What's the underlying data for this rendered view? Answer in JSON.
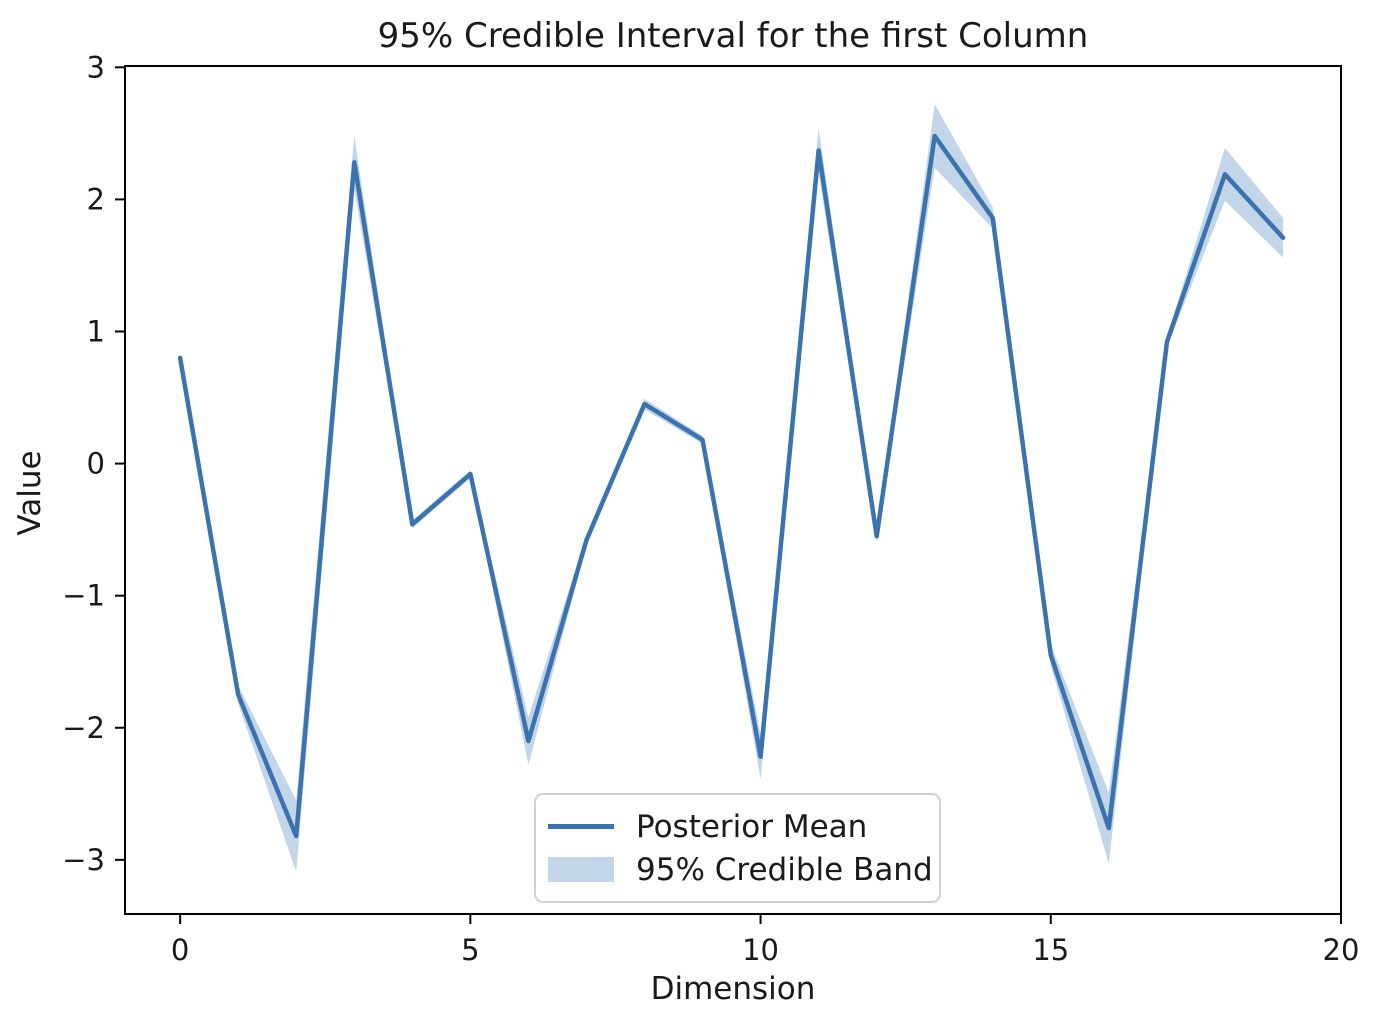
{
  "title": "95% Credible Interval for the first Column",
  "chart_data": {
    "type": "line",
    "title": "95% Credible Interval for the first Column",
    "xlabel": "Dimension",
    "ylabel": "Value",
    "x": [
      0,
      1,
      2,
      3,
      4,
      5,
      6,
      7,
      8,
      9,
      10,
      11,
      12,
      13,
      14,
      15,
      16,
      17,
      18,
      19
    ],
    "series": [
      {
        "name": "Posterior Mean",
        "style": "line",
        "color": "#3b73af",
        "values": [
          0.8,
          -1.75,
          -2.82,
          2.28,
          -0.46,
          -0.08,
          -2.1,
          -0.58,
          0.45,
          0.18,
          -2.22,
          2.37,
          -0.55,
          2.48,
          1.86,
          -1.45,
          -2.76,
          0.92,
          2.19,
          1.71
        ]
      },
      {
        "name": "95% Credible Band",
        "style": "band",
        "color": "#c2d5e9",
        "lower": [
          0.77,
          -1.82,
          -3.09,
          2.08,
          -0.49,
          -0.11,
          -2.28,
          -0.62,
          0.41,
          0.15,
          -2.39,
          2.2,
          -0.59,
          2.24,
          1.78,
          -1.53,
          -3.03,
          0.88,
          1.99,
          1.56
        ],
        "upper": [
          0.83,
          -1.68,
          -2.55,
          2.48,
          -0.43,
          -0.05,
          -1.92,
          -0.54,
          0.49,
          0.21,
          -2.05,
          2.54,
          -0.51,
          2.72,
          1.94,
          -1.37,
          -2.49,
          0.96,
          2.39,
          1.86
        ]
      }
    ],
    "xticks": [
      0,
      5,
      10,
      15,
      20
    ],
    "yticks": [
      -3,
      -2,
      -1,
      0,
      1,
      2,
      3
    ],
    "xlim": [
      -0.95,
      20.0
    ],
    "ylim": [
      -3.41,
      3.01
    ],
    "grid": false,
    "legend_position": "lower center"
  },
  "legend": {
    "entries": [
      {
        "label": "Posterior Mean",
        "type": "line",
        "color": "#3b73af"
      },
      {
        "label": "95% Credible Band",
        "type": "patch",
        "color": "#c2d5e9"
      }
    ]
  },
  "colors": {
    "axis": "#000000",
    "text": "#1a1a1a",
    "background": "#ffffff"
  }
}
